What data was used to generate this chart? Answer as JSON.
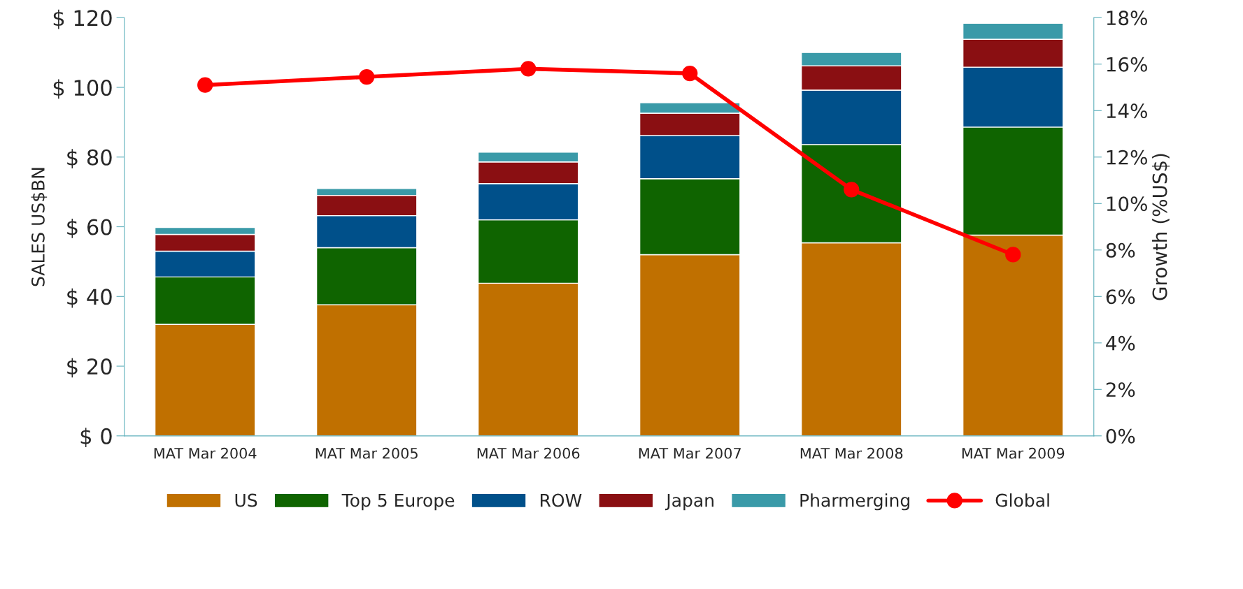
{
  "chart_data": {
    "type": "bar",
    "stacked": true,
    "ylabel": "SALES US$BN",
    "y2label": "Growth (%US$)",
    "categories": [
      "MAT Mar 2004",
      "MAT Mar 2005",
      "MAT Mar 2006",
      "MAT Mar 2007",
      "MAT Mar 2008",
      "MAT Mar 2009"
    ],
    "series": [
      {
        "name": "US",
        "color": "#c07000",
        "values": [
          32,
          37.6,
          43.8,
          52,
          55.4,
          57.6
        ]
      },
      {
        "name": "Top 5 Europe",
        "color": "#0f6400",
        "values": [
          13.6,
          16.4,
          18.2,
          21.8,
          28.2,
          31.0
        ]
      },
      {
        "name": "ROW",
        "color": "#00508a",
        "values": [
          7.4,
          9.2,
          10.4,
          12.4,
          15.6,
          17.2
        ]
      },
      {
        "name": "Japan",
        "color": "#8a0f12",
        "values": [
          4.8,
          5.8,
          6.2,
          6.4,
          7.0,
          8.0
        ]
      },
      {
        "name": "Pharmerging",
        "color": "#3a9aa8",
        "values": [
          2.0,
          2.0,
          2.8,
          3.0,
          3.8,
          4.6
        ]
      },
      {
        "name": "Global",
        "color": "#ff0000",
        "type": "line",
        "axis": "y2",
        "marker": "circle",
        "values": [
          15.1,
          15.45,
          15.8,
          15.6,
          10.6,
          7.8
        ]
      }
    ],
    "ylim": [
      0,
      120
    ],
    "yticks": [
      {
        "value": 0,
        "label": "$ 0"
      },
      {
        "value": 20,
        "label": "$ 20"
      },
      {
        "value": 40,
        "label": "$ 40"
      },
      {
        "value": 60,
        "label": "$ 60"
      },
      {
        "value": 80,
        "label": "$ 80"
      },
      {
        "value": 100,
        "label": "$ 100"
      },
      {
        "value": 120,
        "label": "$ 120"
      }
    ],
    "y2lim": [
      0,
      18
    ],
    "y2ticks": [
      {
        "value": 0,
        "label": "0%"
      },
      {
        "value": 2,
        "label": "2%"
      },
      {
        "value": 4,
        "label": "4%"
      },
      {
        "value": 6,
        "label": "6%"
      },
      {
        "value": 8,
        "label": "8%"
      },
      {
        "value": 10,
        "label": "10%"
      },
      {
        "value": 12,
        "label": "12%"
      },
      {
        "value": 14,
        "label": "14%"
      },
      {
        "value": 16,
        "label": "16%"
      },
      {
        "value": 18,
        "label": "18%"
      }
    ],
    "grid": false,
    "legend": "bottom"
  }
}
